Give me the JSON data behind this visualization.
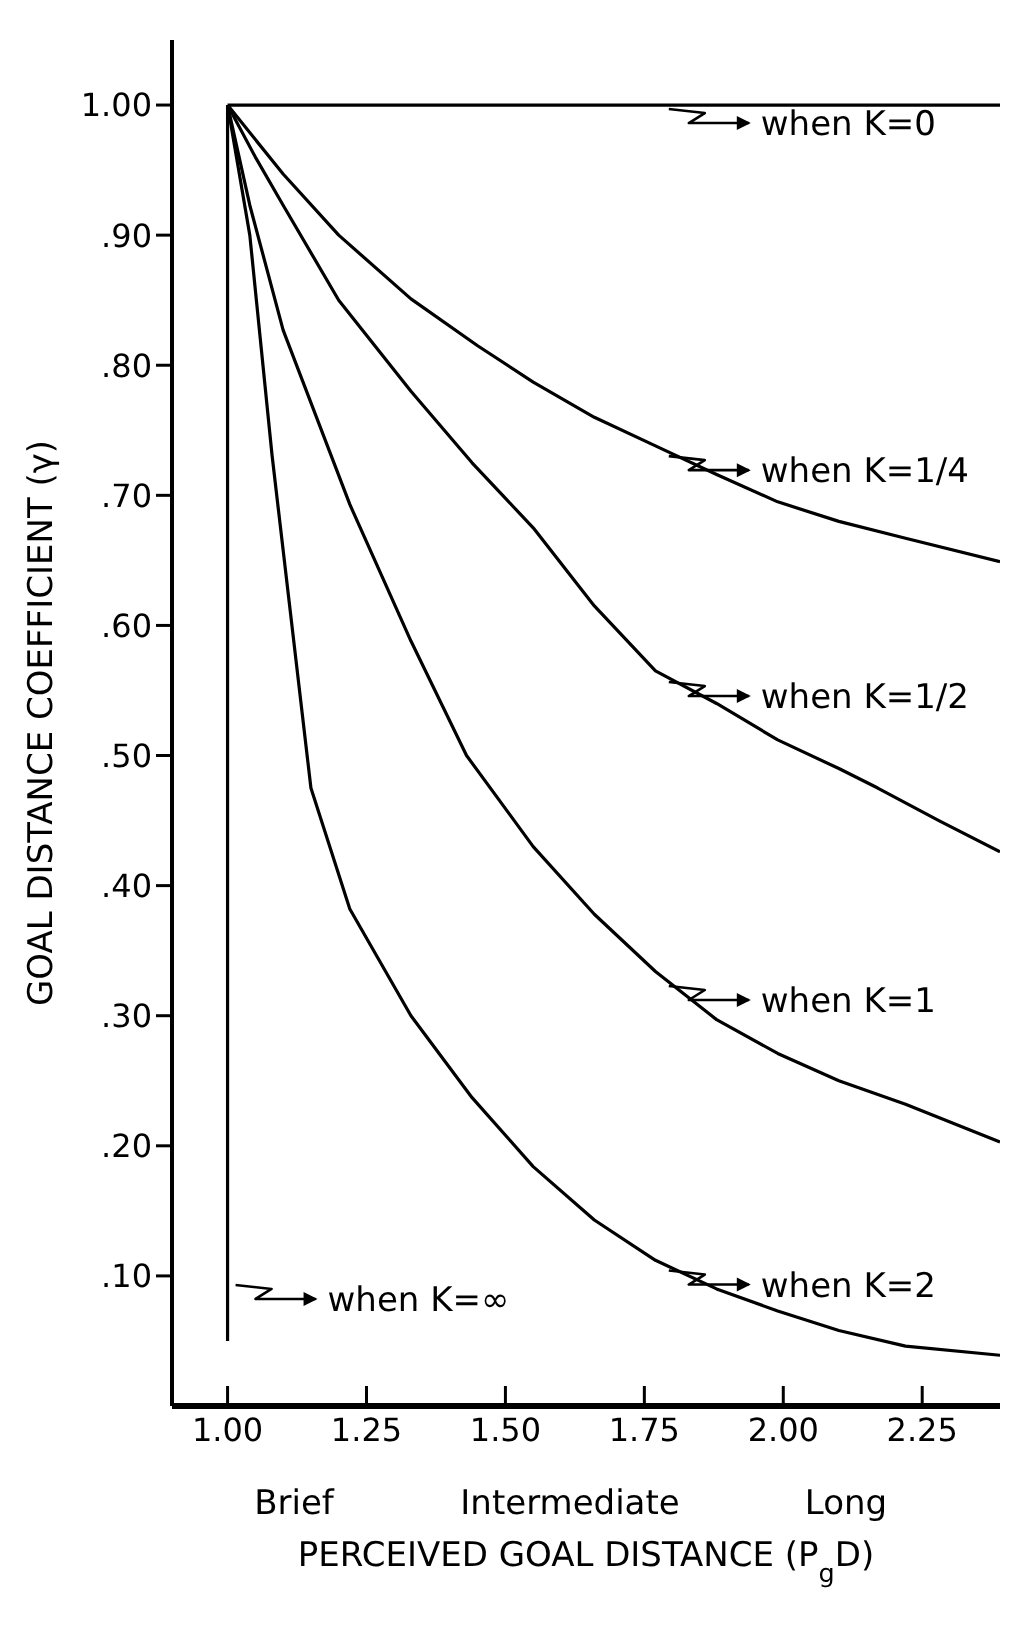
{
  "chart_data": {
    "type": "line",
    "xlabel": "PERCEIVED GOAL DISTANCE (P$_{g}$D)",
    "ylabel": "GOAL DISTANCE COEFFICIENT (γ)",
    "xlim": [
      0.9,
      2.39
    ],
    "ylim": [
      0,
      1.05
    ],
    "xticks": [
      {
        "value": 1.0,
        "label": "1.00"
      },
      {
        "value": 1.25,
        "label": "1.25"
      },
      {
        "value": 1.5,
        "label": "1.50"
      },
      {
        "value": 1.75,
        "label": "1.75"
      },
      {
        "value": 2.0,
        "label": "2.00"
      },
      {
        "value": 2.25,
        "label": "2.25"
      }
    ],
    "yticks": [
      {
        "value": 0.1,
        "label": ".10"
      },
      {
        "value": 0.2,
        "label": ".20"
      },
      {
        "value": 0.3,
        "label": ".30"
      },
      {
        "value": 0.4,
        "label": ".40"
      },
      {
        "value": 0.5,
        "label": ".50"
      },
      {
        "value": 0.6,
        "label": ".60"
      },
      {
        "value": 0.7,
        "label": ".70"
      },
      {
        "value": 0.8,
        "label": ".80"
      },
      {
        "value": 0.9,
        "label": ".90"
      },
      {
        "value": 1.0,
        "label": "1.00"
      }
    ],
    "grid": false,
    "legend": "right",
    "marker": "none",
    "annotations": [
      "Brief",
      "Intermediate",
      "Long"
    ],
    "series": [
      {
        "name": "when K=0",
        "color": "#000000",
        "x": [
          1.0,
          2.39
        ],
        "values": [
          1.0,
          1.0
        ]
      },
      {
        "name": "when K=1/4",
        "color": "#000000",
        "x": [
          1.0,
          1.1,
          1.2,
          1.33,
          1.45,
          1.55,
          1.66,
          1.77,
          1.88,
          1.99,
          2.1,
          2.22,
          2.39
        ],
        "values": [
          1.0,
          0.947,
          0.9,
          0.851,
          0.815,
          0.787,
          0.76,
          0.738,
          0.716,
          0.695,
          0.68,
          0.667,
          0.649
        ]
      },
      {
        "name": "when K=1/2",
        "color": "#000000",
        "x": [
          1.0,
          1.05,
          1.1,
          1.2,
          1.33,
          1.44,
          1.55,
          1.66,
          1.77,
          1.88,
          1.99,
          2.1,
          2.17,
          2.28,
          2.39
        ],
        "values": [
          1.0,
          0.96,
          0.923,
          0.85,
          0.78,
          0.725,
          0.675,
          0.615,
          0.565,
          0.54,
          0.512,
          0.49,
          0.475,
          0.45,
          0.426
        ]
      },
      {
        "name": "when K=1",
        "color": "#000000",
        "x": [
          1.0,
          1.04,
          1.1,
          1.22,
          1.33,
          1.43,
          1.55,
          1.66,
          1.77,
          1.88,
          1.99,
          2.1,
          2.22,
          2.39
        ],
        "values": [
          1.0,
          0.923,
          0.827,
          0.693,
          0.588,
          0.5,
          0.43,
          0.378,
          0.334,
          0.297,
          0.271,
          0.25,
          0.232,
          0.203
        ]
      },
      {
        "name": "when K=2",
        "color": "#000000",
        "x": [
          1.0,
          1.04,
          1.08,
          1.15,
          1.22,
          1.33,
          1.44,
          1.55,
          1.66,
          1.77,
          1.88,
          1.99,
          2.1,
          2.22,
          2.39
        ],
        "values": [
          1.0,
          0.9,
          0.731,
          0.475,
          0.382,
          0.3,
          0.237,
          0.184,
          0.143,
          0.112,
          0.09,
          0.073,
          0.058,
          0.046,
          0.039
        ]
      },
      {
        "name": "when K=∞",
        "color": "#000000",
        "x": [
          1.0,
          1.0
        ],
        "values": [
          1.0,
          0.05
        ]
      }
    ]
  }
}
